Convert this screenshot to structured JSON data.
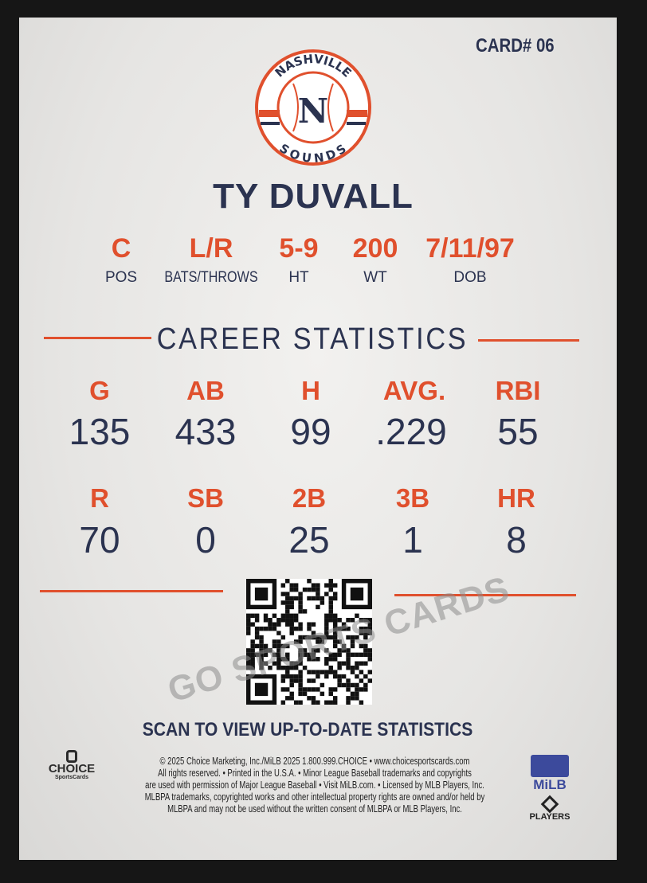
{
  "card_number": "CARD# 06",
  "team_logo": {
    "top_text": "NASHVILLE",
    "bottom_text": "SOUNDS",
    "letter": "N"
  },
  "player_name": "TY DUVALL",
  "bio": [
    {
      "value": "C",
      "label": "POS"
    },
    {
      "value": "L/R",
      "label": "BATS/THROWS"
    },
    {
      "value": "5-9",
      "label": "HT"
    },
    {
      "value": "200",
      "label": "WT"
    },
    {
      "value": "7/11/97",
      "label": "DOB"
    }
  ],
  "section_title": "CAREER STATISTICS",
  "stats_row1": [
    {
      "label": "G",
      "value": "135"
    },
    {
      "label": "AB",
      "value": "433"
    },
    {
      "label": "H",
      "value": "99"
    },
    {
      "label": "AVG.",
      "value": ".229"
    },
    {
      "label": "RBI",
      "value": "55"
    }
  ],
  "stats_row2": [
    {
      "label": "R",
      "value": "70"
    },
    {
      "label": "SB",
      "value": "0"
    },
    {
      "label": "2B",
      "value": "25"
    },
    {
      "label": "3B",
      "value": "1"
    },
    {
      "label": "HR",
      "value": "8"
    }
  ],
  "watermark": "GO SPORTS CARDS",
  "scan_text": "SCAN TO VIEW UP-TO-DATE STATISTICS",
  "fine_print": [
    "© 2025 Choice Marketing, Inc./MiLB 2025  1.800.999.CHOICE • www.choicesportscards.com",
    "All rights reserved. • Printed in the U.S.A. • Minor League Baseball trademarks and copyrights",
    "are used with permission of Major League Baseball • Visit MiLB.com. • Licensed by MLB Players, Inc.",
    "MLBPA trademarks, copyrighted works and other intellectual property rights are owned and/or held by",
    "MLBPA and may not be used without the written consent of MLBPA or MLB Players, Inc."
  ],
  "logos": {
    "choice": "CHOICE",
    "choice_sub": "SportsCards",
    "milb": "MiLB",
    "players": "PLAYERS"
  },
  "colors": {
    "navy": "#2b3350",
    "orange": "#e0502d",
    "card": "#ecebe9"
  }
}
